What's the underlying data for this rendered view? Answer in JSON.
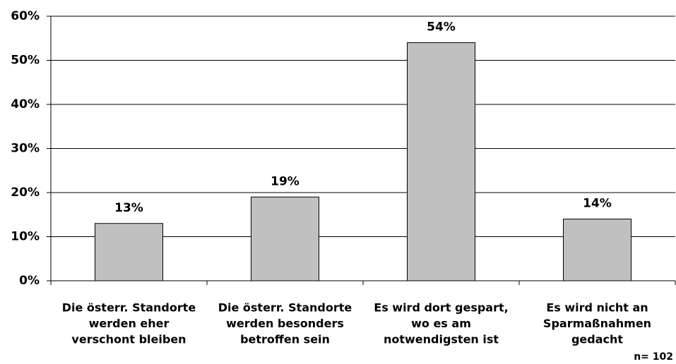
{
  "chart_data": {
    "type": "bar",
    "categories": [
      [
        "Die österr. Standorte",
        "werden eher",
        "verschont bleiben"
      ],
      [
        "Die österr. Standorte",
        "werden besonders",
        "betroffen sein"
      ],
      [
        "Es wird dort gespart,",
        "wo es am",
        "notwendigsten ist"
      ],
      [
        "Es wird nicht an",
        "Sparmaßnahmen",
        "gedacht"
      ]
    ],
    "values": [
      13,
      19,
      54,
      14
    ],
    "value_labels": [
      "13%",
      "19%",
      "54%",
      "14%"
    ],
    "color": "#c0c0c0",
    "ylim": [
      0,
      60
    ],
    "yticks": [
      {
        "value": 0,
        "label": "0%"
      },
      {
        "value": 10,
        "label": "10%"
      },
      {
        "value": 20,
        "label": "20%"
      },
      {
        "value": 30,
        "label": "30%"
      },
      {
        "value": 40,
        "label": "40%"
      },
      {
        "value": 50,
        "label": "50%"
      },
      {
        "value": 60,
        "label": "60%"
      }
    ],
    "grid": true,
    "note": "n= 102"
  }
}
